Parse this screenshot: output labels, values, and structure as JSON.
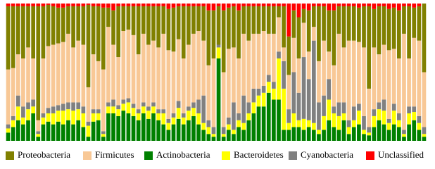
{
  "chart_data": {
    "type": "stacked_bar",
    "ylim": [
      0,
      100
    ],
    "legend": "bottom",
    "series": [
      {
        "name": "Proteobacteria",
        "color": "#808000",
        "values": [
          46,
          45,
          35,
          38,
          30,
          38,
          83,
          38,
          30,
          28,
          26,
          25,
          20,
          30,
          25,
          28,
          60,
          35,
          40,
          45,
          14,
          25,
          37,
          18,
          17,
          21,
          35,
          20,
          28,
          25,
          30,
          20,
          30,
          32,
          24,
          38,
          28,
          20,
          18,
          25,
          40,
          35,
          28,
          45,
          30,
          30,
          35,
          20,
          25,
          20,
          20,
          18,
          20,
          20,
          8,
          30,
          28,
          20,
          30,
          10,
          30,
          15,
          40,
          25,
          30,
          40,
          20,
          30,
          25,
          25,
          25,
          30,
          60,
          28,
          35,
          28,
          30,
          30,
          35,
          20,
          38,
          22,
          25,
          50
        ]
      },
      {
        "name": "Firmicutes",
        "color": "#f8c896",
        "values": [
          40,
          35,
          30,
          35,
          40,
          30,
          8,
          40,
          45,
          45,
          45,
          45,
          50,
          40,
          45,
          45,
          25,
          40,
          35,
          45,
          55,
          40,
          35,
          50,
          50,
          50,
          40,
          50,
          45,
          45,
          45,
          55,
          50,
          45,
          45,
          40,
          45,
          50,
          50,
          40,
          40,
          50,
          0,
          40,
          50,
          40,
          40,
          45,
          45,
          40,
          40,
          40,
          30,
          35,
          25,
          10,
          25,
          25,
          25,
          25,
          20,
          10,
          30,
          40,
          20,
          30,
          50,
          40,
          58,
          48,
          45,
          50,
          28,
          45,
          35,
          40,
          50,
          40,
          40,
          70,
          35,
          50,
          55,
          40
        ]
      },
      {
        "name": "Actinobacteria",
        "color": "#008000",
        "values": [
          6,
          10,
          15,
          12,
          15,
          20,
          3,
          12,
          14,
          12,
          14,
          12,
          15,
          12,
          15,
          10,
          3,
          14,
          15,
          3,
          20,
          20,
          18,
          22,
          20,
          18,
          15,
          20,
          16,
          20,
          15,
          12,
          8,
          12,
          16,
          12,
          15,
          18,
          12,
          8,
          5,
          3,
          60,
          3,
          8,
          5,
          10,
          8,
          15,
          20,
          25,
          25,
          35,
          30,
          30,
          8,
          8,
          10,
          10,
          8,
          10,
          8,
          5,
          8,
          15,
          10,
          8,
          15,
          5,
          10,
          12,
          5,
          4,
          10,
          15,
          12,
          8,
          12,
          10,
          3,
          12,
          15,
          8,
          3
        ]
      },
      {
        "name": "Bacteroidetes",
        "color": "#ffff00",
        "values": [
          3,
          5,
          10,
          5,
          8,
          5,
          2,
          5,
          6,
          8,
          8,
          10,
          8,
          10,
          8,
          10,
          8,
          6,
          5,
          2,
          5,
          5,
          5,
          5,
          8,
          6,
          5,
          5,
          6,
          5,
          5,
          8,
          5,
          5,
          8,
          5,
          7,
          6,
          8,
          5,
          5,
          2,
          8,
          2,
          4,
          3,
          5,
          5,
          5,
          8,
          8,
          10,
          8,
          8,
          30,
          30,
          5,
          10,
          5,
          8,
          5,
          5,
          3,
          10,
          15,
          10,
          10,
          5,
          5,
          5,
          10,
          3,
          2,
          8,
          8,
          10,
          5,
          10,
          5,
          2,
          8,
          6,
          5,
          2
        ]
      },
      {
        "name": "Cyanobacteria",
        "color": "#808080",
        "values": [
          3,
          3,
          8,
          8,
          5,
          5,
          2,
          3,
          4,
          5,
          4,
          5,
          5,
          6,
          5,
          5,
          3,
          3,
          3,
          2,
          3,
          5,
          3,
          3,
          3,
          3,
          3,
          3,
          3,
          3,
          3,
          3,
          3,
          3,
          5,
          3,
          3,
          4,
          10,
          20,
          5,
          5,
          2,
          5,
          5,
          20,
          5,
          20,
          8,
          10,
          5,
          5,
          5,
          5,
          5,
          20,
          10,
          30,
          20,
          45,
          30,
          60,
          20,
          15,
          15,
          5,
          10,
          8,
          5,
          10,
          5,
          10,
          4,
          5,
          5,
          8,
          3,
          5,
          5,
          3,
          5,
          4,
          5,
          5
        ]
      },
      {
        "name": "Unclassified",
        "color": "#ff0000",
        "values": [
          2,
          2,
          2,
          2,
          2,
          2,
          2,
          2,
          1,
          2,
          3,
          3,
          2,
          2,
          2,
          2,
          1,
          2,
          2,
          3,
          3,
          5,
          2,
          2,
          2,
          2,
          2,
          2,
          2,
          2,
          2,
          2,
          4,
          3,
          2,
          2,
          2,
          2,
          2,
          2,
          5,
          5,
          2,
          5,
          3,
          2,
          5,
          2,
          2,
          2,
          2,
          2,
          2,
          2,
          2,
          2,
          24,
          5,
          10,
          4,
          5,
          2,
          2,
          2,
          5,
          5,
          2,
          2,
          2,
          2,
          3,
          2,
          2,
          4,
          2,
          2,
          4,
          3,
          5,
          2,
          2,
          3,
          2,
          0
        ]
      }
    ]
  }
}
